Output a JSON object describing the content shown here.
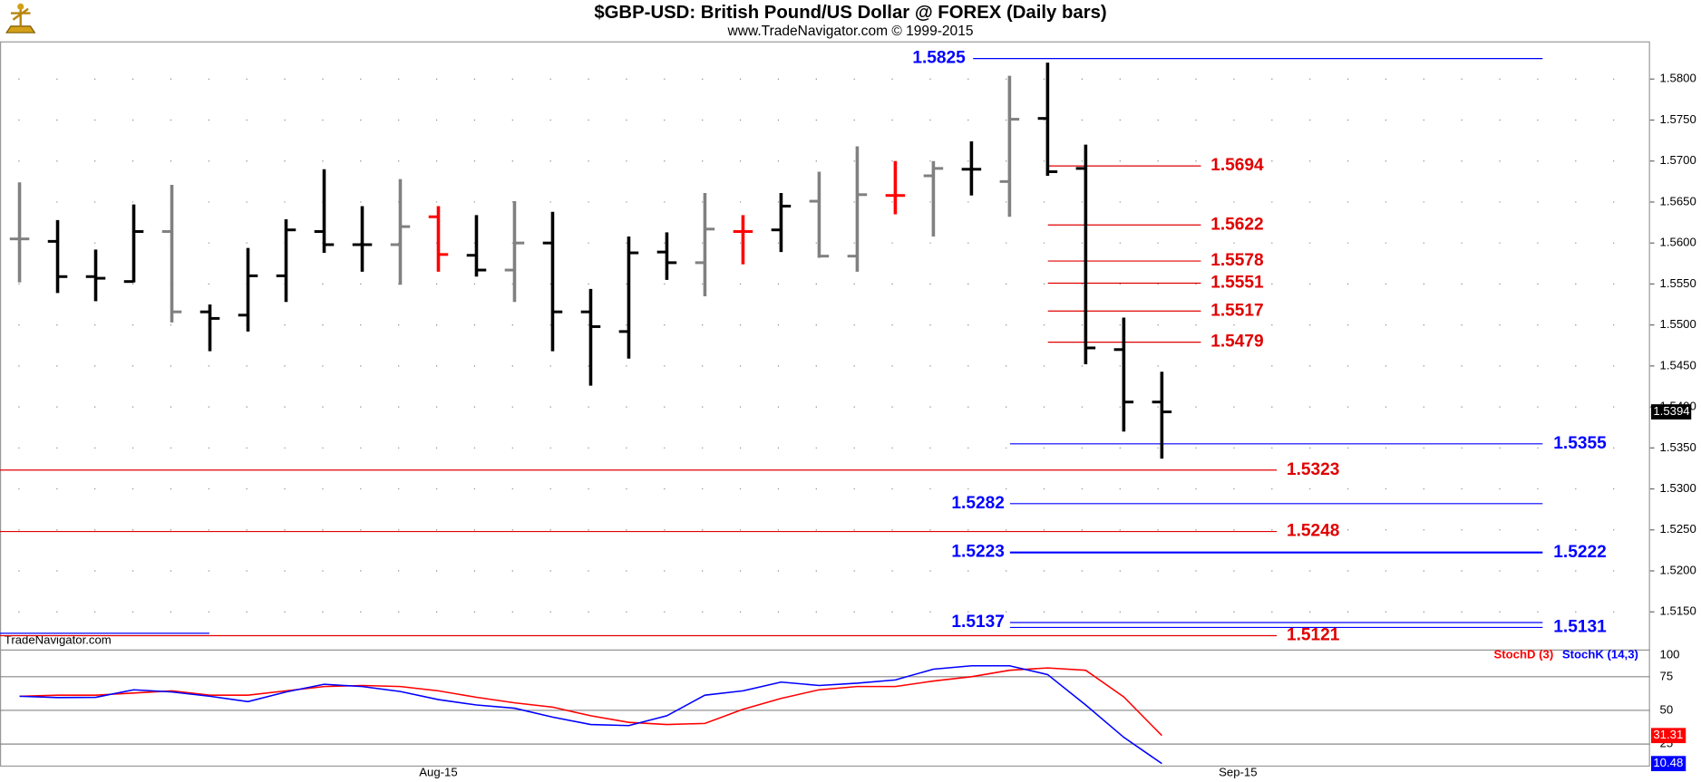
{
  "chart_data": [
    {
      "type": "ohlc",
      "title": "$GBP-USD:  British Pound/US Dollar @ FOREX  (Daily bars)",
      "subtitle": "www.TradeNavigator.com © 1999-2015",
      "watermark": "TradeNavigator.com",
      "categories": [
        null,
        null,
        null,
        null,
        null,
        null,
        null,
        null,
        null,
        null,
        null,
        "Aug-15",
        null,
        null,
        null,
        null,
        null,
        null,
        null,
        null,
        null,
        null,
        null,
        null,
        null,
        null,
        null,
        null,
        null,
        null,
        null,
        null,
        "Sep-15",
        null,
        null,
        null,
        null,
        null,
        null,
        null,
        null,
        null,
        null
      ],
      "open": [
        1.5605,
        1.5602,
        1.5559,
        1.5553,
        1.5614,
        1.5516,
        1.5512,
        1.556,
        1.5614,
        1.5598,
        1.5598,
        1.5632,
        1.5585,
        1.5567,
        1.56,
        1.5516,
        1.5492,
        1.5589,
        1.5576,
        1.5614,
        1.5616,
        1.5651,
        1.5584,
        1.5658,
        1.5682,
        1.569,
        1.5675,
        1.5752,
        1.5691,
        1.547,
        1.5406,
        null,
        null,
        null,
        null,
        null,
        null,
        null,
        null,
        null,
        null,
        null,
        null
      ],
      "high": [
        1.5674,
        1.5628,
        1.5592,
        1.5647,
        1.5671,
        1.5525,
        1.5594,
        1.5629,
        1.569,
        1.5645,
        1.5678,
        1.5645,
        1.5634,
        1.5651,
        1.5638,
        1.5544,
        1.5608,
        1.5613,
        1.5661,
        1.5634,
        1.5661,
        1.5687,
        1.5718,
        1.57,
        1.57,
        1.5724,
        1.5804,
        1.582,
        1.572,
        1.5509,
        1.5443,
        null,
        null,
        null,
        null,
        null,
        null,
        null,
        null,
        null,
        null,
        null,
        null
      ],
      "low": [
        1.5552,
        1.5539,
        1.5529,
        1.5552,
        1.5503,
        1.5468,
        1.5492,
        1.5528,
        1.5588,
        1.5565,
        1.5549,
        1.5565,
        1.5559,
        1.5528,
        1.5468,
        1.5426,
        1.5459,
        1.5555,
        1.5535,
        1.5574,
        1.5589,
        1.5582,
        1.5565,
        1.5635,
        1.5608,
        1.5658,
        1.5632,
        1.5682,
        1.5452,
        1.537,
        1.5337,
        null,
        null,
        null,
        null,
        null,
        null,
        null,
        null,
        null,
        null,
        null,
        null
      ],
      "close": [
        1.5605,
        1.5559,
        1.5557,
        1.5614,
        1.5516,
        1.5508,
        1.556,
        1.5616,
        1.5598,
        1.5598,
        1.562,
        1.5586,
        1.5567,
        1.56,
        1.5516,
        1.5498,
        1.5588,
        1.5576,
        1.5617,
        1.5614,
        1.5645,
        1.5584,
        1.5659,
        1.5658,
        1.5691,
        1.569,
        1.5751,
        1.5687,
        1.5472,
        1.5406,
        1.5394,
        null,
        null,
        null,
        null,
        null,
        null,
        null,
        null,
        null,
        null,
        null,
        null
      ],
      "colors": [
        "#808080",
        "#000000",
        "#000000",
        "#000000",
        "#808080",
        "#000000",
        "#000000",
        "#000000",
        "#000000",
        "#000000",
        "#808080",
        "#ff0000",
        "#000000",
        "#808080",
        "#000000",
        "#000000",
        "#000000",
        "#000000",
        "#808080",
        "#ff0000",
        "#000000",
        "#808080",
        "#808080",
        "#ff0000",
        "#808080",
        "#000000",
        "#808080",
        "#000000",
        "#000000",
        "#000000",
        "#000000",
        null,
        null,
        null,
        null,
        null,
        null,
        null,
        null,
        null,
        null,
        null,
        null
      ],
      "ylim": [
        1.5104,
        1.5846
      ],
      "yticks": [
        {
          "value": 1.515,
          "label": "1.5150"
        },
        {
          "value": 1.52,
          "label": "1.5200"
        },
        {
          "value": 1.525,
          "label": "1.5250"
        },
        {
          "value": 1.53,
          "label": "1.5300"
        },
        {
          "value": 1.535,
          "label": "1.5350"
        },
        {
          "value": 1.54,
          "label": "1.5400"
        },
        {
          "value": 1.545,
          "label": "1.5450"
        },
        {
          "value": 1.55,
          "label": "1.5500"
        },
        {
          "value": 1.555,
          "label": "1.5550"
        },
        {
          "value": 1.56,
          "label": "1.5600"
        },
        {
          "value": 1.565,
          "label": "1.5650"
        },
        {
          "value": 1.57,
          "label": "1.5700"
        },
        {
          "value": 1.575,
          "label": "1.5750"
        },
        {
          "value": 1.58,
          "label": "1.5800"
        }
      ],
      "grid": true,
      "levels": [
        {
          "value": 1.5825,
          "color": "#0000ff"
        },
        {
          "value": 1.5694,
          "color": "#e00000"
        },
        {
          "value": 1.5622,
          "color": "#e00000"
        },
        {
          "value": 1.5578,
          "color": "#e00000"
        },
        {
          "value": 1.5551,
          "color": "#e00000"
        },
        {
          "value": 1.5517,
          "color": "#e00000"
        },
        {
          "value": 1.5479,
          "color": "#e00000"
        },
        {
          "value": 1.5355,
          "color": "#0000ff"
        },
        {
          "value": 1.5323,
          "color": "#e00000"
        },
        {
          "value": 1.5282,
          "color": "#0000ff"
        },
        {
          "value": 1.5248,
          "color": "#e00000"
        },
        {
          "value": 1.5223,
          "color": "#0000ff"
        },
        {
          "value": 1.5222,
          "color": "#0000ff"
        },
        {
          "value": 1.5137,
          "color": "#0000ff"
        },
        {
          "value": 1.5131,
          "color": "#0000ff"
        },
        {
          "value": 1.5121,
          "color": "#e00000"
        }
      ]
    },
    {
      "type": "line",
      "series": [
        {
          "name": "StochD (3)",
          "color": "#ff0000",
          "values": [
            60.5,
            61.3,
            61.3,
            62.9,
            64.5,
            61.3,
            61.3,
            64.5,
            67.7,
            68.5,
            67.7,
            64.5,
            59.7,
            55.6,
            52.4,
            46,
            41.1,
            39.5,
            40.3,
            50.8,
            58.9,
            65.3,
            67.7,
            67.7,
            71.8,
            75,
            79.8,
            81.5,
            79.8,
            60,
            31.31,
            null,
            null,
            null,
            null,
            null,
            null,
            null,
            null,
            null,
            null,
            null,
            null
          ]
        },
        {
          "name": "StochK (14,3)",
          "color": "#0000ff",
          "values": [
            60.5,
            59.5,
            59.7,
            65.3,
            63.7,
            60.5,
            56.5,
            63.7,
            69.4,
            67.7,
            64,
            58,
            54,
            51.6,
            45,
            39.5,
            38.7,
            46,
            61.3,
            64.5,
            71,
            68.5,
            70.2,
            72.6,
            80.6,
            83.1,
            83.1,
            76.6,
            54,
            30,
            10.48,
            null,
            null,
            null,
            null,
            null,
            null,
            null,
            null,
            null,
            null,
            null,
            null
          ]
        }
      ],
      "ylim": [
        9,
        100
      ],
      "yticks": [
        25,
        50,
        75,
        100
      ]
    }
  ]
}
